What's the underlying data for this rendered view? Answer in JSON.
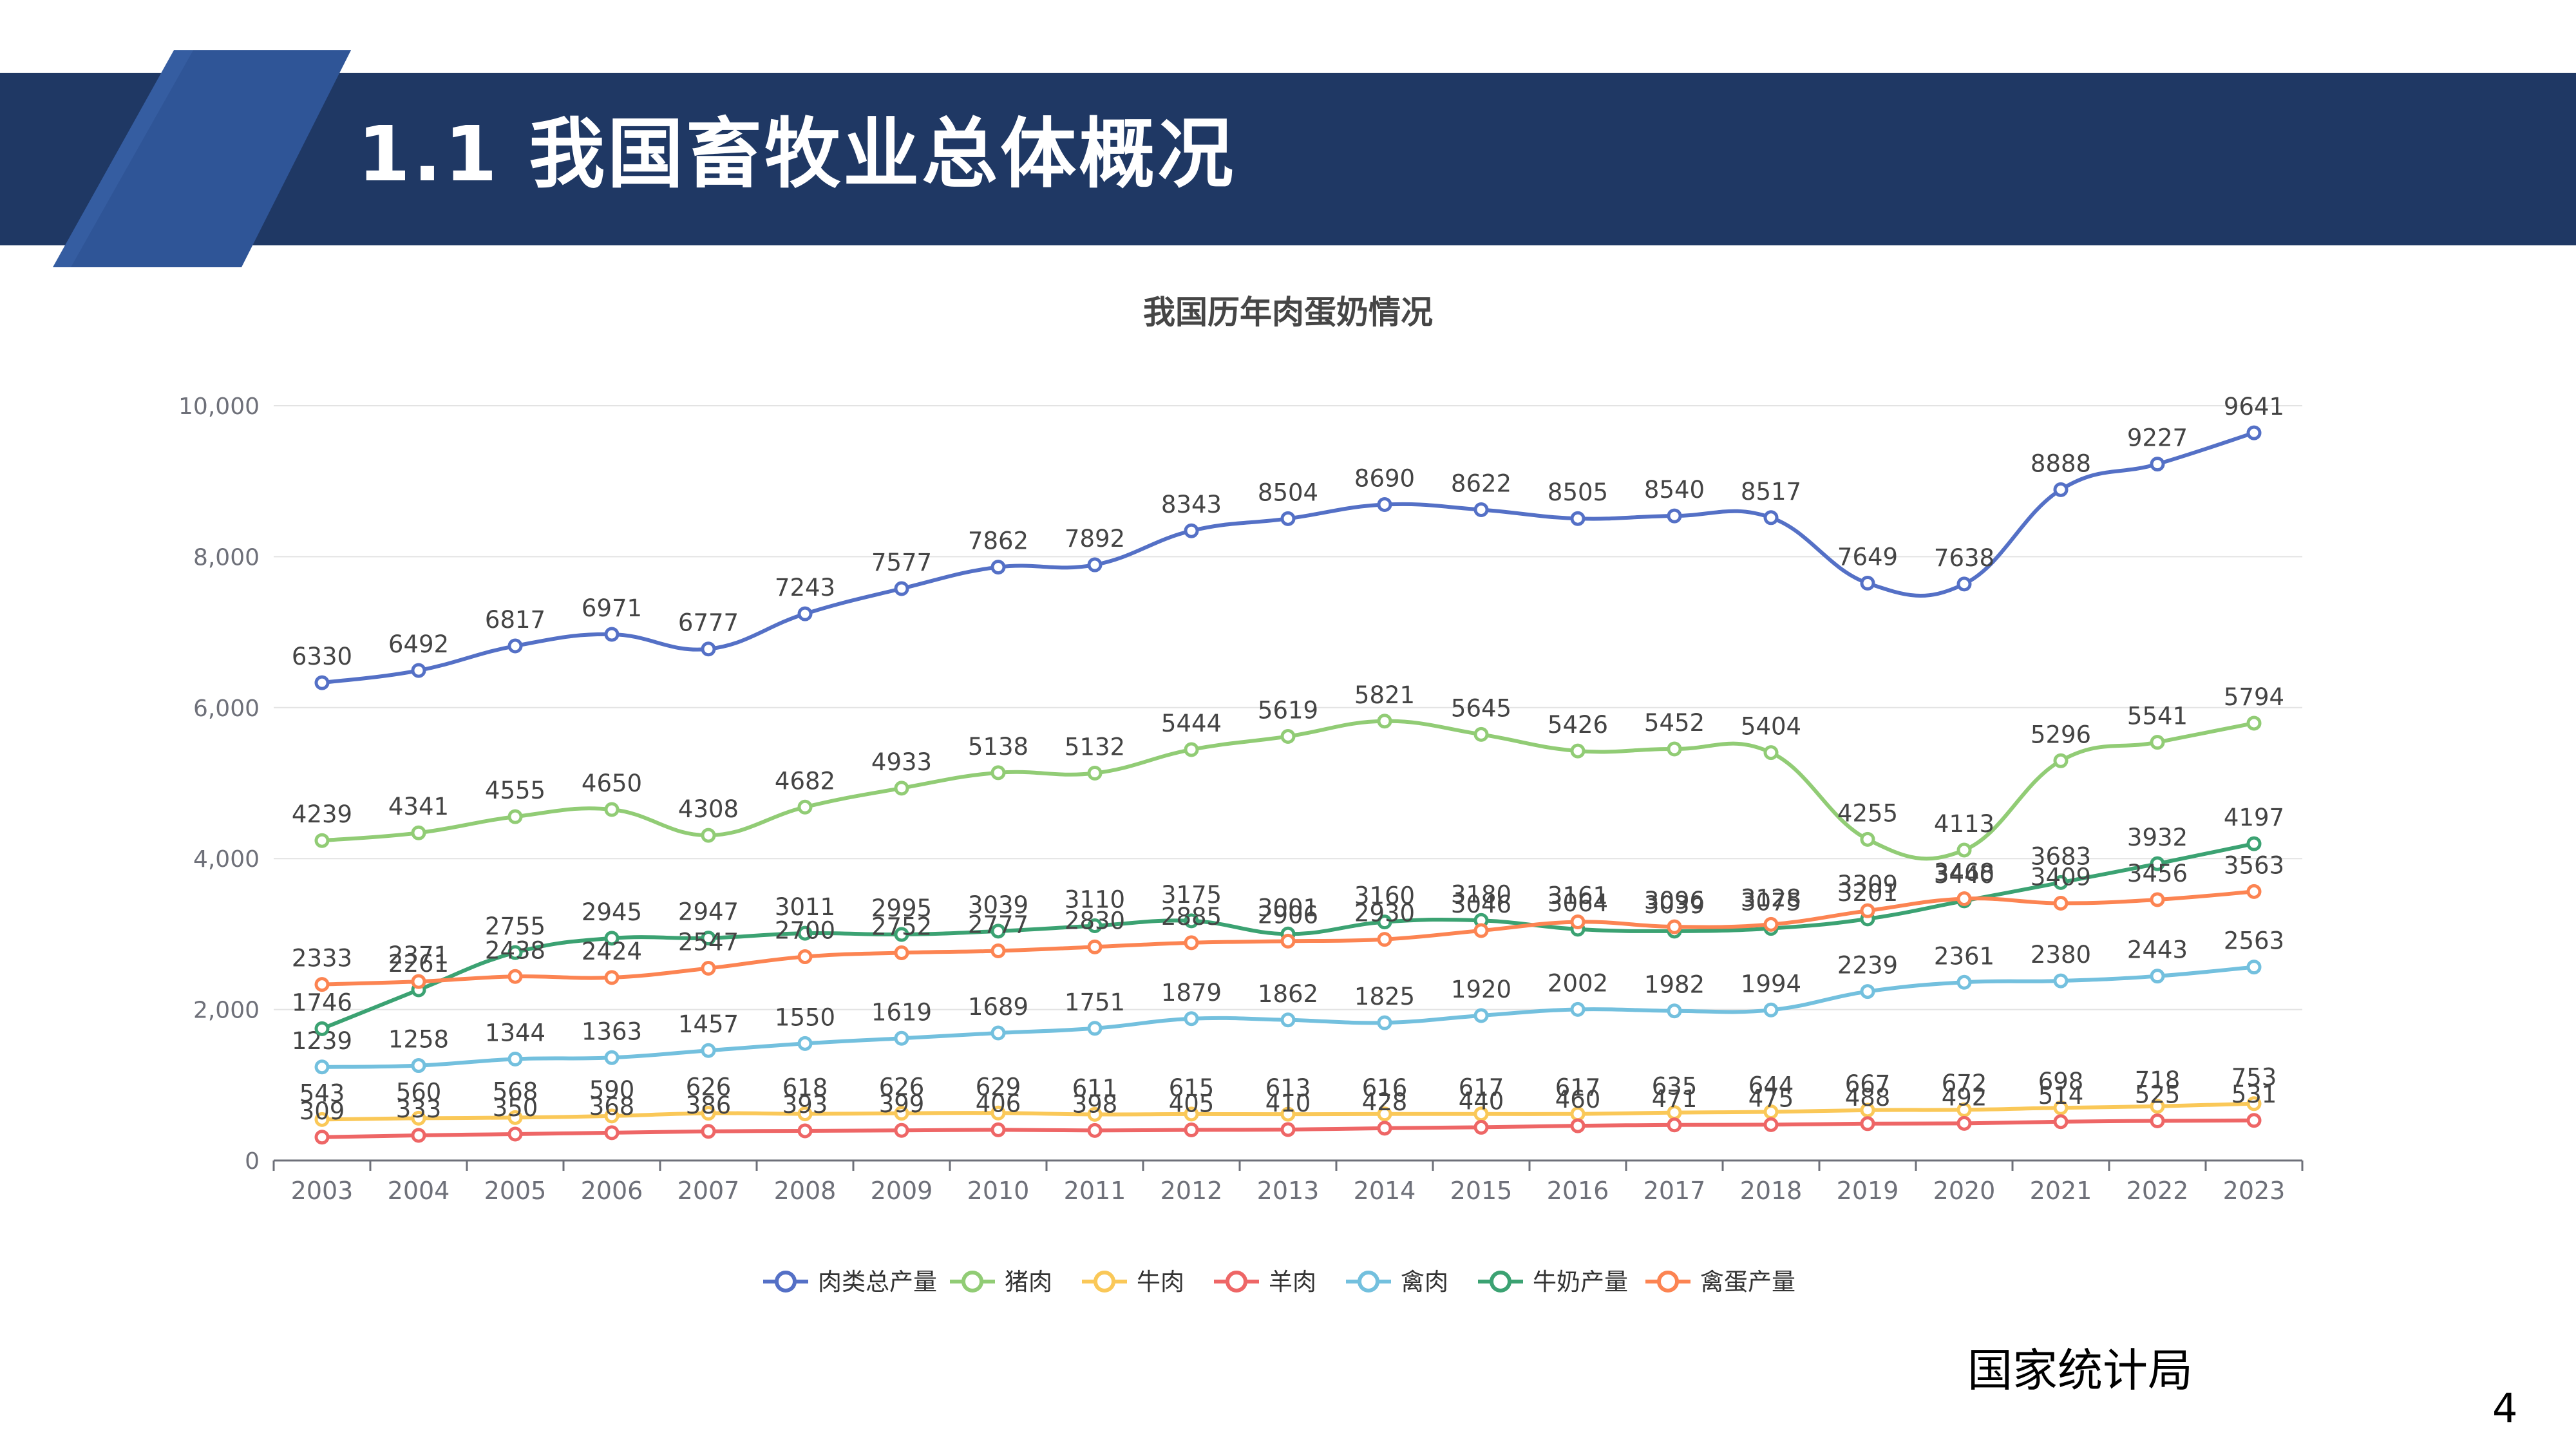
{
  "banner": {
    "title": "1.1  我国畜牧业总体概况"
  },
  "source_label": "国家统计局",
  "page_number": "4",
  "colors": {
    "banner_bg": "#1f3864",
    "banner_accent": "#2f5597"
  },
  "chart_data": {
    "type": "line",
    "title": "我国历年肉蛋奶情况",
    "xlabel": "",
    "ylabel": "",
    "ylim": [
      0,
      10000
    ],
    "yticks": [
      "0",
      "2,000",
      "4,000",
      "6,000",
      "8,000",
      "10,000"
    ],
    "categories": [
      "2003",
      "2004",
      "2005",
      "2006",
      "2007",
      "2008",
      "2009",
      "2010",
      "2011",
      "2012",
      "2013",
      "2014",
      "2015",
      "2016",
      "2017",
      "2018",
      "2019",
      "2020",
      "2021",
      "2022",
      "2023"
    ],
    "grid": true,
    "legend_position": "bottom",
    "series": [
      {
        "name": "肉类总产量",
        "color": "#5470c6",
        "values": [
          6330,
          6492,
          6817,
          6971,
          6777,
          7243,
          7577,
          7862,
          7892,
          8343,
          8504,
          8690,
          8622,
          8505,
          8540,
          8517,
          7649,
          7638,
          8888,
          9227,
          9641
        ]
      },
      {
        "name": "猪肉",
        "color": "#91cc75",
        "values": [
          4239,
          4341,
          4555,
          4650,
          4308,
          4682,
          4933,
          5138,
          5132,
          5444,
          5619,
          5821,
          5645,
          5426,
          5452,
          5404,
          4255,
          4113,
          5296,
          5541,
          5794
        ]
      },
      {
        "name": "牛肉",
        "color": "#fac858",
        "values": [
          543,
          560,
          568,
          590,
          626,
          618,
          626,
          629,
          611,
          615,
          613,
          616,
          617,
          617,
          635,
          644,
          667,
          672,
          698,
          718,
          753
        ]
      },
      {
        "name": "羊肉",
        "color": "#ee6666",
        "values": [
          309,
          333,
          350,
          368,
          386,
          393,
          399,
          406,
          398,
          405,
          410,
          428,
          440,
          460,
          471,
          475,
          488,
          492,
          514,
          525,
          531
        ]
      },
      {
        "name": "禽肉",
        "color": "#73c0de",
        "values": [
          1239,
          1258,
          1344,
          1363,
          1457,
          1550,
          1619,
          1689,
          1751,
          1879,
          1862,
          1825,
          1920,
          2002,
          1982,
          1994,
          2239,
          2361,
          2380,
          2443,
          2563
        ]
      },
      {
        "name": "牛奶产量",
        "color": "#3ba272",
        "values": [
          1746,
          2261,
          2755,
          2945,
          2947,
          3011,
          2995,
          3039,
          3110,
          3175,
          3001,
          3160,
          3180,
          3064,
          3039,
          3075,
          3201,
          3440,
          3683,
          3932,
          4197
        ]
      },
      {
        "name": "禽蛋产量",
        "color": "#fc8452",
        "values": [
          2333,
          2371,
          2438,
          2424,
          2547,
          2700,
          2752,
          2777,
          2830,
          2885,
          2906,
          2930,
          3046,
          3161,
          3096,
          3128,
          3309,
          3468,
          3409,
          3456,
          3563
        ]
      }
    ]
  }
}
